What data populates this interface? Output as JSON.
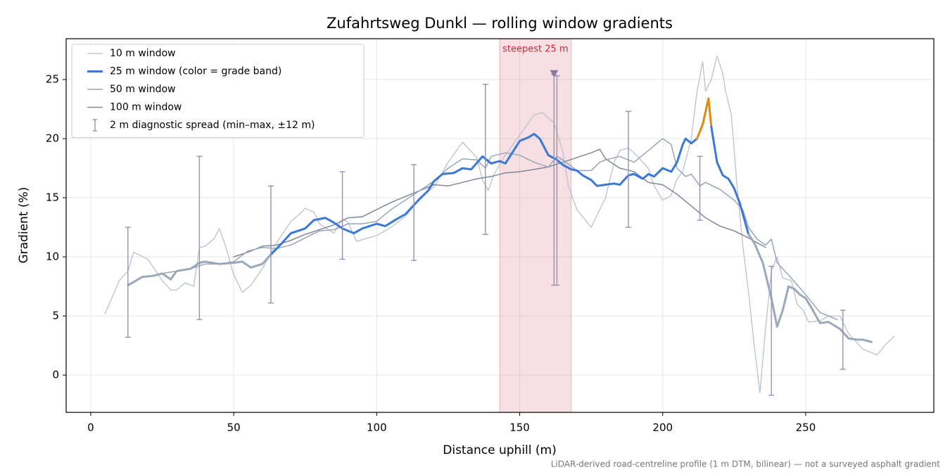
{
  "chart_data": {
    "type": "line",
    "title": "Zufahrtsweg Dunkl — rolling window gradients",
    "xlabel": "Distance uphill (m)",
    "ylabel": "Gradient (%)",
    "footnote": "LiDAR-derived road-centreline profile (1 m DTM, bilinear) — not a surveyed asphalt gradient",
    "xlim": [
      -8.6,
      294.8
    ],
    "ylim": [
      -3.15,
      28.45
    ],
    "xticks": [
      0,
      50,
      100,
      150,
      200,
      250
    ],
    "yticks": [
      0,
      5,
      10,
      15,
      20,
      25
    ],
    "grid": true,
    "legend": "upper left",
    "highlight": {
      "from": 143,
      "to": 168,
      "label": "steepest 25 m",
      "color": "#d9737f"
    },
    "marker": {
      "x": 162,
      "y": 25.5,
      "color": "#8878a8"
    },
    "series": [
      {
        "name": "10 m window",
        "color": "#b8c2d0",
        "width": 1.3,
        "x": [
          5,
          10,
          13,
          15,
          20,
          25,
          28,
          30,
          33,
          36,
          38,
          40,
          43,
          45,
          47,
          50,
          53,
          56,
          60,
          63,
          65,
          70,
          73,
          75,
          78,
          80,
          85,
          88,
          90,
          93,
          97,
          100,
          105,
          110,
          115,
          120,
          125,
          130,
          135,
          137,
          139,
          141,
          145,
          150,
          155,
          158,
          162,
          165,
          167,
          170,
          175,
          180,
          183,
          185,
          188,
          190,
          195,
          197,
          200,
          203,
          205,
          207,
          210,
          212,
          214,
          215,
          217,
          219,
          221,
          222,
          224,
          226,
          228,
          230,
          232,
          234,
          236,
          238,
          240,
          242,
          245,
          247,
          249,
          251,
          255,
          258,
          262,
          265,
          270,
          275,
          278,
          281
        ],
        "values": [
          5.2,
          8.0,
          8.8,
          10.4,
          9.8,
          8.0,
          7.2,
          7.2,
          7.8,
          7.5,
          10.8,
          10.9,
          11.5,
          12.4,
          11.0,
          8.5,
          7.0,
          7.6,
          9.0,
          10.3,
          11.2,
          13.0,
          13.6,
          14.1,
          13.8,
          12.8,
          12.0,
          13.2,
          12.9,
          11.3,
          11.6,
          11.8,
          12.5,
          13.4,
          15.0,
          15.9,
          18.0,
          19.7,
          18.4,
          16.5,
          15.6,
          17.0,
          18.6,
          20.3,
          22.0,
          22.2,
          21.3,
          19.0,
          16.0,
          14.0,
          12.5,
          15.0,
          18.0,
          19.0,
          19.2,
          18.8,
          17.5,
          16.0,
          14.8,
          15.2,
          16.6,
          17.2,
          20.0,
          24.0,
          26.5,
          24.0,
          25.0,
          27.0,
          25.5,
          24.0,
          22.0,
          16.0,
          11.0,
          7.0,
          2.5,
          -1.5,
          4.0,
          8.8,
          10.0,
          8.2,
          8.0,
          6.0,
          5.5,
          4.5,
          4.6,
          5.0,
          5.0,
          3.5,
          2.2,
          1.7,
          2.6,
          3.3
        ]
      },
      {
        "name": "25 m window (color = grade band)",
        "color": "#3a78d8",
        "width": 3,
        "segments": [
          {
            "start": 13,
            "end": 63,
            "color": "#9aa8ba"
          },
          {
            "start": 63,
            "end": 212,
            "color": "#3a78d8"
          },
          {
            "start": 212,
            "end": 217,
            "color": "#e08a10"
          },
          {
            "start": 217,
            "end": 230,
            "color": "#3a78d8"
          },
          {
            "start": 230,
            "end": 273,
            "color": "#9aa8ba"
          }
        ],
        "x": [
          13,
          18,
          22,
          25,
          28,
          30,
          35,
          38,
          40,
          45,
          50,
          53,
          56,
          60,
          63,
          67,
          70,
          75,
          78,
          82,
          85,
          88,
          92,
          95,
          100,
          103,
          107,
          110,
          115,
          118,
          120,
          123,
          127,
          130,
          133,
          137,
          140,
          143,
          145,
          150,
          153,
          155,
          157,
          160,
          163,
          165,
          168,
          170,
          172,
          175,
          177,
          180,
          183,
          185,
          188,
          190,
          193,
          195,
          197,
          200,
          203,
          205,
          207,
          208,
          210,
          212,
          214,
          216,
          217,
          219,
          221,
          223,
          225,
          227,
          230,
          232,
          235,
          238,
          240,
          242,
          244,
          246,
          248,
          250,
          252,
          255,
          258,
          262,
          265,
          268,
          270,
          273
        ],
        "values": [
          7.6,
          8.3,
          8.4,
          8.6,
          8.1,
          8.8,
          9.0,
          9.5,
          9.6,
          9.4,
          9.5,
          9.6,
          9.1,
          9.4,
          10.2,
          11.2,
          12.0,
          12.4,
          13.1,
          13.3,
          12.9,
          12.4,
          12.0,
          12.4,
          12.8,
          12.6,
          13.2,
          13.6,
          14.9,
          15.6,
          16.4,
          17.0,
          17.1,
          17.5,
          17.4,
          18.5,
          17.9,
          18.1,
          17.9,
          19.8,
          20.1,
          20.4,
          20.0,
          18.6,
          18.2,
          17.8,
          17.4,
          17.3,
          16.9,
          16.5,
          16.0,
          16.1,
          16.2,
          16.1,
          16.9,
          17.0,
          16.6,
          17.0,
          16.8,
          17.5,
          17.2,
          18.0,
          19.5,
          20.0,
          19.6,
          20.0,
          21.2,
          23.4,
          21.0,
          18.0,
          16.9,
          16.6,
          15.8,
          14.5,
          11.9,
          11.2,
          9.5,
          6.5,
          4.1,
          5.5,
          7.5,
          7.3,
          6.8,
          6.5,
          5.7,
          4.4,
          4.5,
          3.9,
          3.1,
          3.0,
          3.0,
          2.8
        ]
      },
      {
        "name": "50 m window",
        "color": "#9aa6b8",
        "width": 1.5,
        "x": [
          25,
          30,
          35,
          40,
          45,
          50,
          55,
          60,
          65,
          70,
          75,
          80,
          85,
          90,
          95,
          100,
          105,
          110,
          115,
          120,
          125,
          130,
          135,
          138,
          140,
          145,
          150,
          155,
          160,
          163,
          165,
          170,
          175,
          178,
          180,
          185,
          190,
          195,
          200,
          203,
          205,
          208,
          210,
          213,
          215,
          220,
          225,
          228,
          230,
          233,
          236,
          238,
          240,
          245,
          250,
          255,
          258,
          261
        ],
        "values": [
          8.6,
          8.8,
          9.0,
          9.4,
          9.4,
          9.6,
          10.5,
          10.8,
          10.7,
          11.0,
          11.6,
          12.2,
          12.3,
          12.8,
          12.8,
          13.0,
          14.0,
          14.8,
          15.6,
          16.4,
          17.5,
          18.3,
          18.2,
          17.5,
          18.5,
          18.8,
          18.6,
          18.0,
          17.6,
          18.5,
          18.2,
          17.3,
          17.3,
          18.0,
          18.2,
          18.5,
          18.0,
          19.0,
          20.0,
          19.5,
          17.5,
          16.8,
          17.0,
          16.0,
          16.3,
          15.7,
          14.8,
          14.0,
          12.5,
          11.5,
          11.0,
          11.5,
          9.5,
          8.2,
          6.8,
          5.3,
          5.0,
          4.7
        ]
      },
      {
        "name": "100 m window",
        "color": "#7f8898",
        "width": 1.5,
        "x": [
          50,
          55,
          60,
          65,
          70,
          75,
          80,
          85,
          90,
          95,
          100,
          105,
          110,
          115,
          120,
          125,
          130,
          135,
          140,
          145,
          150,
          155,
          160,
          165,
          170,
          175,
          178,
          180,
          185,
          190,
          195,
          200,
          205,
          210,
          215,
          220,
          225,
          230,
          236
        ],
        "values": [
          10.0,
          10.4,
          10.9,
          11.0,
          11.4,
          11.9,
          12.3,
          12.7,
          13.3,
          13.4,
          14.0,
          14.6,
          15.1,
          15.6,
          16.1,
          16.0,
          16.3,
          16.6,
          16.8,
          17.1,
          17.2,
          17.4,
          17.6,
          18.0,
          18.4,
          18.8,
          19.1,
          18.3,
          17.5,
          17.2,
          16.3,
          16.1,
          15.3,
          14.3,
          13.3,
          12.6,
          12.2,
          11.6,
          10.8
        ]
      }
    ],
    "errorbars": {
      "name": "2 m diagnostic spread (min–max, ±12 m)",
      "color": "#9890b8",
      "x": [
        13,
        38,
        63,
        88,
        113,
        138,
        162,
        163,
        188,
        213,
        238,
        263
      ],
      "low": [
        3.2,
        4.7,
        6.1,
        9.8,
        9.7,
        11.9,
        7.6,
        7.6,
        12.5,
        13.1,
        -1.7,
        0.5
      ],
      "high": [
        12.5,
        18.5,
        16.0,
        17.2,
        17.8,
        24.6,
        25.4,
        25.3,
        22.3,
        18.5,
        9.2,
        5.5
      ]
    }
  }
}
